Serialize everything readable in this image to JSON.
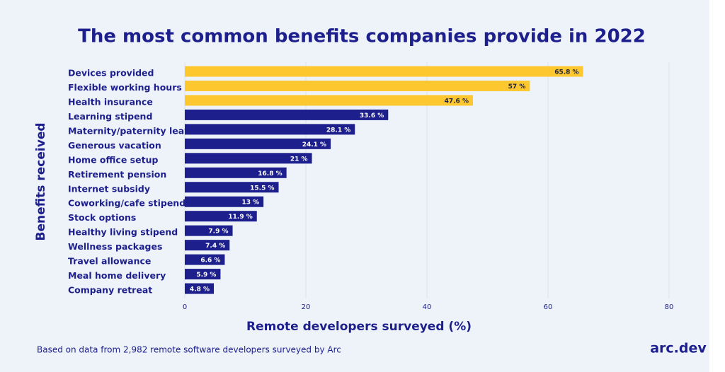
{
  "chart_data": {
    "type": "barh",
    "title": "The most common benefits companies provide in 2022",
    "xlabel": "Remote developers surveyed (%)",
    "ylabel": "Benefits received",
    "footnote": "Based on data from 2,982 remote software developers surveyed by Arc",
    "brand": "arc.dev",
    "categories": [
      "Devices provided",
      "Flexible working hours",
      "Health insurance",
      "Learning stipend",
      "Maternity/paternity leave",
      "Generous vacation",
      "Home office setup",
      "Retirement pension",
      "Internet subsidy",
      "Coworking/cafe stipend",
      "Stock options",
      "Healthy living stipend",
      "Wellness packages",
      "Travel allowance",
      "Meal home delivery",
      "Company retreat"
    ],
    "values": [
      65.8,
      57,
      47.6,
      33.6,
      28.1,
      24.1,
      21,
      16.8,
      15.5,
      13,
      11.9,
      7.9,
      7.4,
      6.6,
      5.9,
      4.8
    ],
    "value_labels": [
      "65.8 %",
      "57 %",
      "47.6 %",
      "33.6 %",
      "28.1 %",
      "24.1 %",
      "21 %",
      "16.8 %",
      "15.5 %",
      "13 %",
      "11.9 %",
      "7.9 %",
      "7.4 %",
      "6.6 %",
      "5.9 %",
      "4.8 %"
    ],
    "colors": [
      "#fdc82f",
      "#fdc82f",
      "#fdc82f",
      "#1c1f8c",
      "#1c1f8c",
      "#1c1f8c",
      "#1c1f8c",
      "#1c1f8c",
      "#1c1f8c",
      "#1c1f8c",
      "#1c1f8c",
      "#1c1f8c",
      "#1c1f8c",
      "#1c1f8c",
      "#1c1f8c",
      "#1c1f8c"
    ],
    "xlim": [
      0,
      80
    ],
    "xticks": [
      0,
      20,
      40,
      60,
      80
    ],
    "grid": true
  }
}
